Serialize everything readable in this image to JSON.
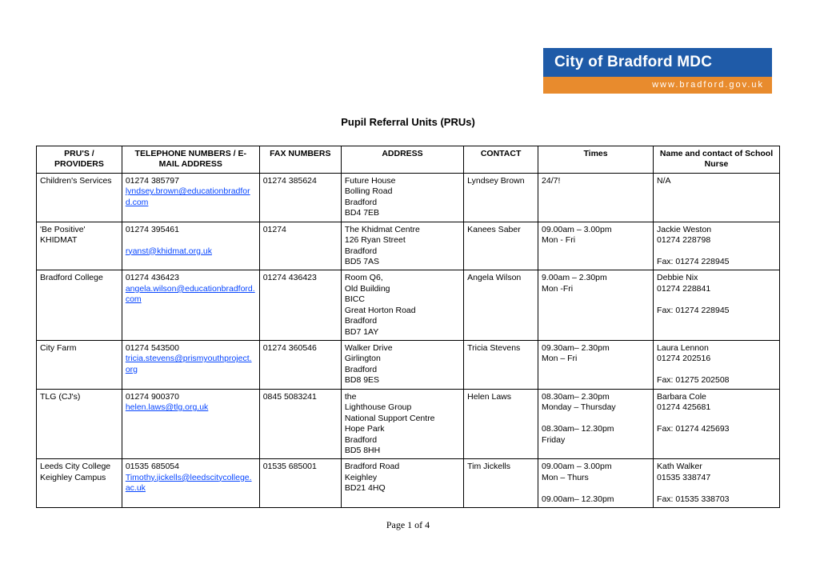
{
  "logo": {
    "line1": "City of Bradford MDC",
    "line2": "www.bradford.gov.uk"
  },
  "title": "Pupil Referral Units (PRUs)",
  "columns": [
    "PRU'S / PROVIDERS",
    "TELEPHONE NUMBERS / E-MAIL ADDRESS",
    "FAX NUMBERS",
    "ADDRESS",
    "CONTACT",
    "Times",
    "Name and contact of School Nurse"
  ],
  "rows": [
    {
      "provider": "Children's Services",
      "tel": "01274 385797",
      "email": "lyndsey.brown@educationbradford.com",
      "fax": "01274 385624",
      "address": [
        "Future House",
        "Bolling Road",
        "Bradford",
        "BD4 7EB"
      ],
      "contact": "Lyndsey Brown",
      "times": [
        "24/7!"
      ],
      "nurse": [
        "N/A"
      ]
    },
    {
      "provider": "'Be Positive' KHIDMAT",
      "tel": "01274 395461",
      "email": "ryanst@khidmat.org.uk",
      "email_gap_before": true,
      "fax": "01274",
      "address": [
        "The Khidmat Centre",
        "126 Ryan Street",
        "Bradford",
        "BD5 7AS"
      ],
      "contact": "Kanees Saber",
      "times": [
        "09.00am – 3.00pm",
        "Mon - Fri"
      ],
      "nurse": [
        "Jackie Weston",
        "01274 228798"
      ],
      "nurse_fax": "Fax: 01274 228945"
    },
    {
      "provider": "Bradford College",
      "tel": "01274 436423",
      "email": "angela.wilson@educationbradford.com",
      "fax": "01274 436423",
      "address": [
        "Room Q6,",
        "Old Building",
        "BICC",
        "Great Horton Road",
        "Bradford",
        "BD7 1AY"
      ],
      "contact": "Angela Wilson",
      "times": [
        "9.00am – 2.30pm",
        "Mon -Fri"
      ],
      "nurse": [
        "Debbie Nix",
        "01274 228841"
      ],
      "nurse_fax": "Fax: 01274 228945"
    },
    {
      "provider": "City Farm",
      "tel": "01274 543500",
      "email": "tricia.stevens@prismyouthproject.org",
      "fax": "01274 360546",
      "address": [
        "Walker Drive",
        "Girlington",
        "Bradford",
        "BD8 9ES"
      ],
      "contact": "Tricia Stevens",
      "times": [
        "09.30am– 2.30pm",
        "Mon – Fri"
      ],
      "nurse": [
        "Laura Lennon",
        "01274 202516"
      ],
      "nurse_fax": "Fax: 01275 202508"
    },
    {
      "provider": "TLG (CJ's)",
      "tel": "01274 900370",
      "email": "helen.laws@tlg.org.uk",
      "fax": "0845 5083241",
      "address": [
        "the",
        "Lighthouse Group",
        "National Support Centre",
        "Hope Park",
        "Bradford",
        "BD5 8HH"
      ],
      "contact": "Helen Laws",
      "times": [
        "08.30am– 2.30pm",
        "Monday – Thursday",
        "",
        "08.30am– 12.30pm",
        "Friday"
      ],
      "nurse": [
        "Barbara Cole",
        "01274 425681"
      ],
      "nurse_fax": "Fax: 01274 425693"
    },
    {
      "provider": "Leeds City College Keighley Campus",
      "tel": "01535 685054",
      "email": "Timothy.jickells@leedscitycollege.ac.uk",
      "fax": "01535 685001",
      "address": [
        "Bradford Road",
        "Keighley",
        "BD21 4HQ"
      ],
      "contact": "Tim Jickells",
      "times": [
        "09.00am – 3.00pm",
        "Mon – Thurs",
        "",
        "09.00am– 12.30pm"
      ],
      "nurse": [
        "Kath Walker",
        "01535 338747"
      ],
      "nurse_fax": "Fax:  01535 338703"
    }
  ],
  "footer": "Page 1 of 4"
}
